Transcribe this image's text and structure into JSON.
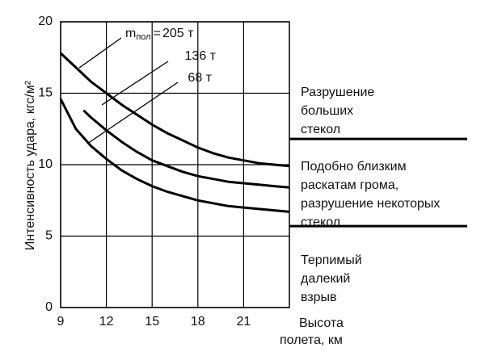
{
  "chart_data": {
    "type": "line",
    "ylabel": "Интенсивность удара, кгс/м²",
    "xlabel": [
      "Высота",
      "полета, км"
    ],
    "xlim": [
      9,
      24
    ],
    "xticks": [
      9,
      12,
      15,
      18,
      21
    ],
    "ylim": [
      0,
      20
    ],
    "yticks": [
      0,
      5,
      10,
      15,
      20
    ],
    "grid": true,
    "legend_prefix": "m",
    "legend_prefix_subscript": "пол",
    "legend_prefix_sign": "=",
    "series": [
      {
        "name": "205 т",
        "color": "#000000",
        "x": [
          9,
          10,
          11,
          12,
          13,
          14,
          15,
          16,
          17,
          18,
          19,
          20,
          21,
          22,
          23,
          24
        ],
        "values": [
          17.8,
          16.8,
          15.8,
          15.0,
          14.2,
          13.5,
          12.8,
          12.2,
          11.7,
          11.2,
          10.8,
          10.5,
          10.3,
          10.1,
          10.0,
          9.9
        ]
      },
      {
        "name": "136 т",
        "color": "#000000",
        "x": [
          10.5,
          11,
          12,
          13,
          14,
          15,
          16,
          17,
          18,
          19,
          20,
          21,
          22,
          23,
          24
        ],
        "values": [
          13.8,
          13.3,
          12.4,
          11.6,
          10.9,
          10.3,
          9.9,
          9.5,
          9.2,
          9.0,
          8.8,
          8.7,
          8.6,
          8.5,
          8.4
        ]
      },
      {
        "name": "68 т",
        "color": "#000000",
        "x": [
          9,
          10,
          11,
          12,
          13,
          14,
          15,
          16,
          17,
          18,
          19,
          20,
          21,
          22,
          23,
          24
        ],
        "values": [
          14.6,
          12.5,
          11.3,
          10.4,
          9.6,
          9.0,
          8.5,
          8.1,
          7.8,
          7.5,
          7.3,
          7.1,
          7.0,
          6.9,
          6.8,
          6.7
        ]
      }
    ],
    "zone_boundaries": [
      11.8,
      5.7
    ],
    "zones": [
      [
        "Разрушение",
        "больших",
        "стекол"
      ],
      [
        "Подобно близким",
        "раскатам грома,",
        "разрушение некоторых",
        "стекол"
      ],
      [
        "Терпимый",
        "далекий",
        "взрыв"
      ]
    ]
  }
}
